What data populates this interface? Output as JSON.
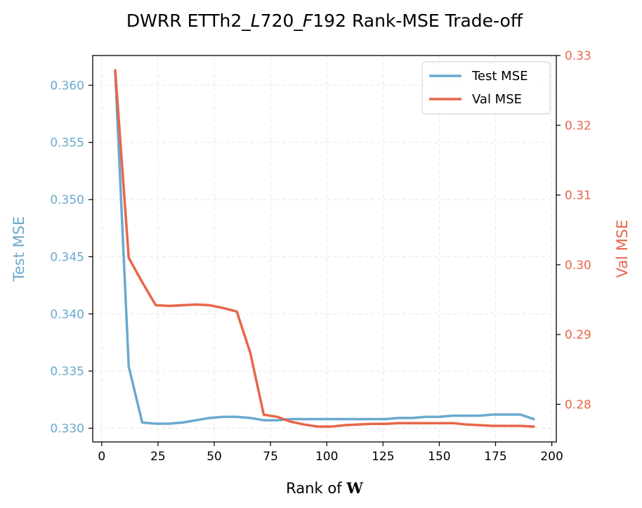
{
  "chart_data": {
    "type": "line",
    "title_parts": [
      "DWRR ETTh2_",
      "L",
      "720_",
      "F",
      "192 Rank-MSE Trade-off"
    ],
    "xlabel": "Rank of ",
    "xlabel_symbol": "W",
    "ylabel_left": "Test MSE",
    "ylabel_right": "Val MSE",
    "xlim": [
      -4,
      202
    ],
    "ylim_left": [
      0.3288,
      0.3626
    ],
    "ylim_right": [
      0.2746,
      0.33
    ],
    "x_ticks": [
      0,
      25,
      50,
      75,
      100,
      125,
      150,
      175,
      200
    ],
    "x_tick_labels": [
      "0",
      "25",
      "50",
      "75",
      "100",
      "125",
      "150",
      "175",
      "200"
    ],
    "y_left_ticks": [
      0.33,
      0.335,
      0.34,
      0.345,
      0.35,
      0.355,
      0.36
    ],
    "y_left_tick_labels": [
      "0.330",
      "0.335",
      "0.340",
      "0.345",
      "0.350",
      "0.355",
      "0.360"
    ],
    "y_right_ticks": [
      0.28,
      0.29,
      0.3,
      0.31,
      0.32,
      0.33
    ],
    "y_right_tick_labels": [
      "0.28",
      "0.29",
      "0.30",
      "0.31",
      "0.32",
      "0.33"
    ],
    "grid": true,
    "legend_position": "top-right",
    "colors": {
      "test": "#6aa9cf",
      "val": "#e8664a",
      "left_axis": "#6aa9cf",
      "right_axis": "#e8664a"
    },
    "x": [
      6,
      12,
      18,
      24,
      30,
      36,
      42,
      48,
      54,
      60,
      66,
      72,
      78,
      84,
      90,
      96,
      102,
      108,
      114,
      120,
      126,
      132,
      138,
      144,
      150,
      156,
      162,
      168,
      174,
      180,
      186,
      192
    ],
    "series": [
      {
        "name": "Test MSE",
        "axis": "left",
        "values": [
          0.3612,
          0.3354,
          0.3305,
          0.3304,
          0.3304,
          0.3305,
          0.3307,
          0.3309,
          0.331,
          0.331,
          0.3309,
          0.3307,
          0.3307,
          0.3308,
          0.3308,
          0.3308,
          0.3308,
          0.3308,
          0.3308,
          0.3308,
          0.3308,
          0.3309,
          0.3309,
          0.331,
          0.331,
          0.3311,
          0.3311,
          0.3311,
          0.3312,
          0.3312,
          0.3312,
          0.3308
        ]
      },
      {
        "name": "Val MSE",
        "axis": "right",
        "values": [
          0.3279,
          0.301,
          0.2975,
          0.2942,
          0.2941,
          0.2942,
          0.2943,
          0.2942,
          0.2938,
          0.2933,
          0.2874,
          0.2785,
          0.2782,
          0.2775,
          0.2771,
          0.2768,
          0.2768,
          0.277,
          0.2771,
          0.2772,
          0.2772,
          0.2773,
          0.2773,
          0.2773,
          0.2773,
          0.2773,
          0.2771,
          0.277,
          0.2769,
          0.2769,
          0.2769,
          0.2768
        ]
      }
    ]
  }
}
